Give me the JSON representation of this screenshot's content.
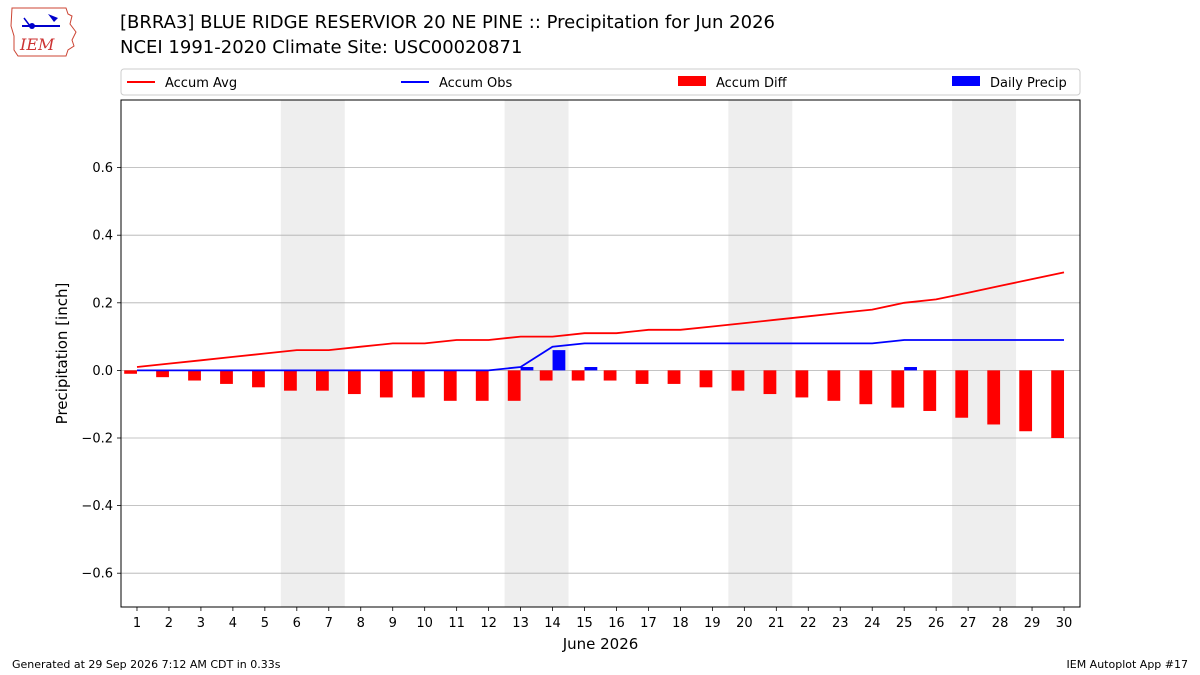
{
  "header": {
    "title": "[BRRA3] BLUE RIDGE RESERVIOR 20 NE PINE :: Precipitation for Jun 2026",
    "subtitle": "NCEI 1991-2020 Climate Site: USC00020871",
    "logo_text": "IEM"
  },
  "footer": {
    "generated": "Generated at 29 Sep 2026 7:12 AM CDT in 0.33s",
    "app": "IEM Autoplot App #17"
  },
  "colors": {
    "accum_avg": "#ff0000",
    "accum_obs": "#0000ff",
    "accum_diff": "#ff0000",
    "daily_precip": "#0000ff",
    "weekend_shade": "#eeeeee",
    "grid": "#b0b0b0"
  },
  "chart_data": {
    "type": "bar",
    "xlabel": "June 2026",
    "ylabel": "Precipitation [inch]",
    "ylim": [
      -0.7,
      0.8
    ],
    "yticks": [
      -0.6,
      -0.4,
      -0.2,
      0.0,
      0.2,
      0.4,
      0.6
    ],
    "ytick_labels": [
      "−0.6",
      "−0.4",
      "−0.2",
      "0.0",
      "0.2",
      "0.4",
      "0.6"
    ],
    "grid": "horizontal",
    "legend_position": "top",
    "days": [
      1,
      2,
      3,
      4,
      5,
      6,
      7,
      8,
      9,
      10,
      11,
      12,
      13,
      14,
      15,
      16,
      17,
      18,
      19,
      20,
      21,
      22,
      23,
      24,
      25,
      26,
      27,
      28,
      29,
      30
    ],
    "weekend_bands": [
      [
        6,
        7
      ],
      [
        13,
        14
      ],
      [
        20,
        21
      ],
      [
        27,
        28
      ]
    ],
    "series": [
      {
        "name": "Accum Avg",
        "kind": "line",
        "values": [
          0.01,
          0.02,
          0.03,
          0.04,
          0.05,
          0.06,
          0.06,
          0.07,
          0.08,
          0.08,
          0.09,
          0.09,
          0.1,
          0.1,
          0.11,
          0.11,
          0.12,
          0.12,
          0.13,
          0.14,
          0.15,
          0.16,
          0.17,
          0.18,
          0.2,
          0.21,
          0.23,
          0.25,
          0.27,
          0.29
        ]
      },
      {
        "name": "Accum Obs",
        "kind": "line",
        "values": [
          0,
          0,
          0,
          0,
          0,
          0,
          0,
          0,
          0,
          0,
          0,
          0,
          0.01,
          0.07,
          0.08,
          0.08,
          0.08,
          0.08,
          0.08,
          0.08,
          0.08,
          0.08,
          0.08,
          0.08,
          0.09,
          0.09,
          0.09,
          0.09,
          0.09,
          0.09
        ]
      },
      {
        "name": "Accum Diff",
        "kind": "bar",
        "values": [
          -0.01,
          -0.02,
          -0.03,
          -0.04,
          -0.05,
          -0.06,
          -0.06,
          -0.07,
          -0.08,
          -0.08,
          -0.09,
          -0.09,
          -0.09,
          -0.03,
          -0.03,
          -0.03,
          -0.04,
          -0.04,
          -0.05,
          -0.06,
          -0.07,
          -0.08,
          -0.09,
          -0.1,
          -0.11,
          -0.12,
          -0.14,
          -0.16,
          -0.18,
          -0.2
        ]
      },
      {
        "name": "Daily Precip",
        "kind": "bar",
        "values": [
          0,
          0,
          0,
          0,
          0,
          0,
          0,
          0,
          0,
          0,
          0,
          0,
          0.01,
          0.06,
          0.01,
          0,
          0,
          0,
          0,
          0,
          0,
          0,
          0,
          0,
          0.01,
          0,
          0,
          0,
          0,
          0
        ]
      }
    ]
  }
}
